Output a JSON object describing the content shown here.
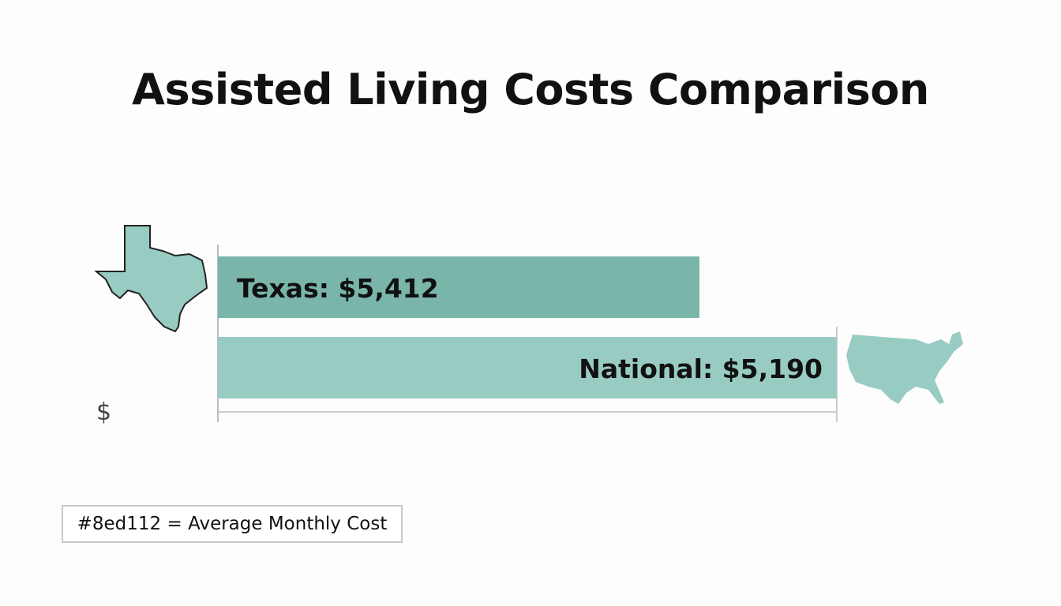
{
  "title": "Assisted Living Costs Comparison",
  "chart_data": {
    "type": "bar",
    "orientation": "horizontal",
    "title": "Assisted Living Costs Comparison",
    "categories": [
      "Texas",
      "National"
    ],
    "values": [
      5412,
      5190
    ],
    "labels": [
      "Texas: $5,412",
      "National: $5,190"
    ],
    "axis_label": "$",
    "legend": "#8ed112 = Average Monthly Cost",
    "legend_placement": "bottom-left",
    "colors": [
      "#7ab5aa",
      "#98cbc1"
    ],
    "icons": [
      "texas-map-icon",
      "usa-map-icon"
    ],
    "grid": false
  }
}
